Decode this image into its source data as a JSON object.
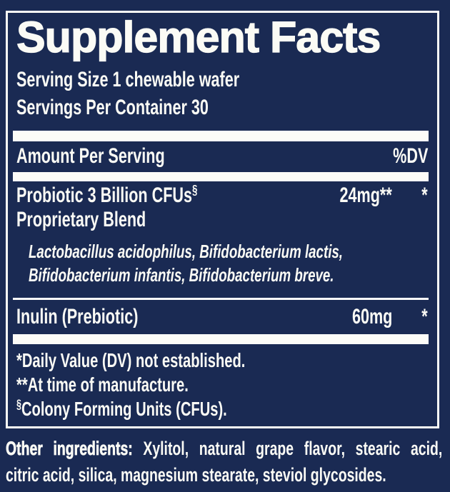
{
  "colors": {
    "background": "#1a2a53",
    "text": "#fbfbf5",
    "separator_bar": "#fcfcf8",
    "panel_border": "#fbfbf5"
  },
  "panel": {
    "title": "Supplement Facts",
    "serving_size": "Serving Size 1 chewable wafer",
    "servings_per_container": "Servings Per Container 30",
    "header": {
      "amount_label": "Amount Per Serving",
      "dv_label": "%DV"
    },
    "probiotic_row": {
      "name": "Probiotic 3 Billion CFUs",
      "name_sup": "§",
      "amount": "24mg**",
      "dv": "*"
    },
    "proprietary_blend_label": "Proprietary Blend",
    "blend_lines": {
      "line1": "Lactobacillus acidophilus, Bifidobacterium lactis,",
      "line2": "Bifidobacterium infantis, Bifidobacterium breve."
    },
    "inulin_row": {
      "name": "Inulin (Prebiotic)",
      "amount": "60mg",
      "dv": "*"
    },
    "footnotes": {
      "daily_value": "*Daily Value (DV) not established.",
      "manufacture": "**At time of manufacture.",
      "cfu_sup": "§",
      "cfu_text": "Colony Forming Units (CFUs)."
    }
  },
  "other_ingredients": {
    "label": "Other ingredients:",
    "line1_rest": "Xylitol, natural grape flavor, stearic acid,",
    "line2": "citric acid, silica, magnesium stearate, steviol glycosides."
  }
}
